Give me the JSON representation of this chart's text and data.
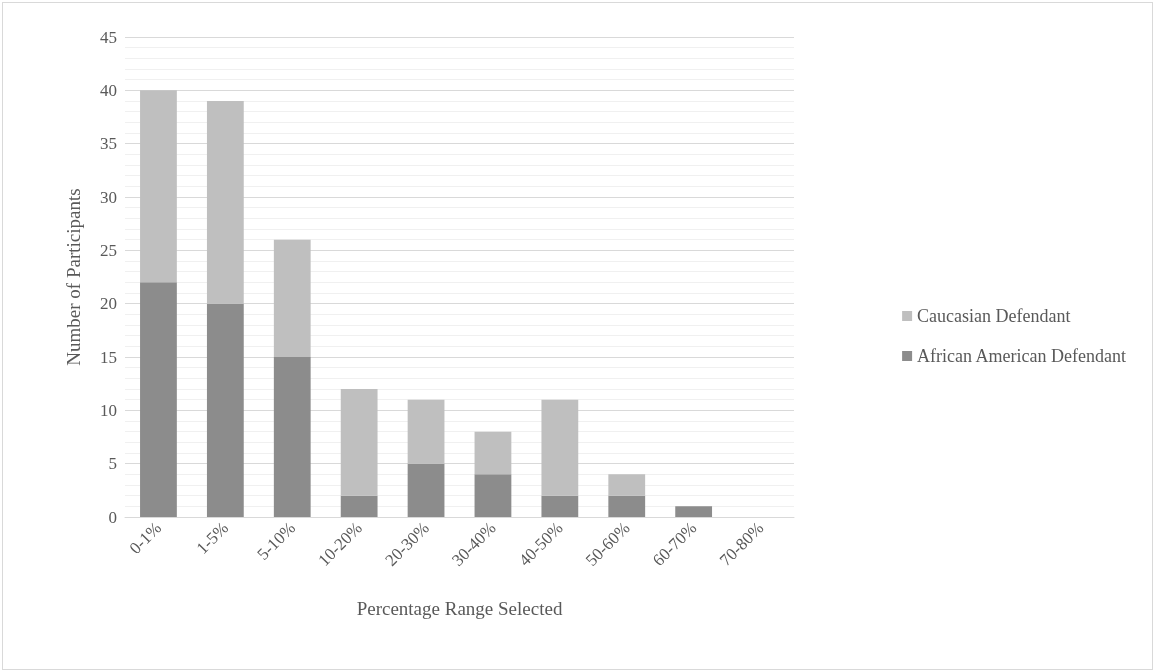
{
  "chart_data": {
    "type": "bar",
    "stacked": true,
    "xlabel": "Percentage Range Selected",
    "ylabel": "Number of Participants",
    "categories": [
      "0-1%",
      "1-5%",
      "5-10%",
      "10-20%",
      "20-30%",
      "30-40%",
      "40-50%",
      "50-60%",
      "60-70%",
      "70-80%"
    ],
    "series": [
      {
        "name": "African American Defendant",
        "color": "#8c8c8c",
        "values": [
          22,
          20,
          15,
          2,
          5,
          4,
          2,
          2,
          1,
          0
        ]
      },
      {
        "name": "Caucasian Defendant",
        "color": "#bfbfbf",
        "values": [
          18,
          19,
          11,
          10,
          6,
          4,
          9,
          2,
          0,
          0
        ]
      }
    ],
    "ylim": [
      0,
      45
    ],
    "yticks": [
      0,
      5,
      10,
      15,
      20,
      25,
      30,
      35,
      40,
      45
    ],
    "grid": true,
    "legend": "right"
  }
}
